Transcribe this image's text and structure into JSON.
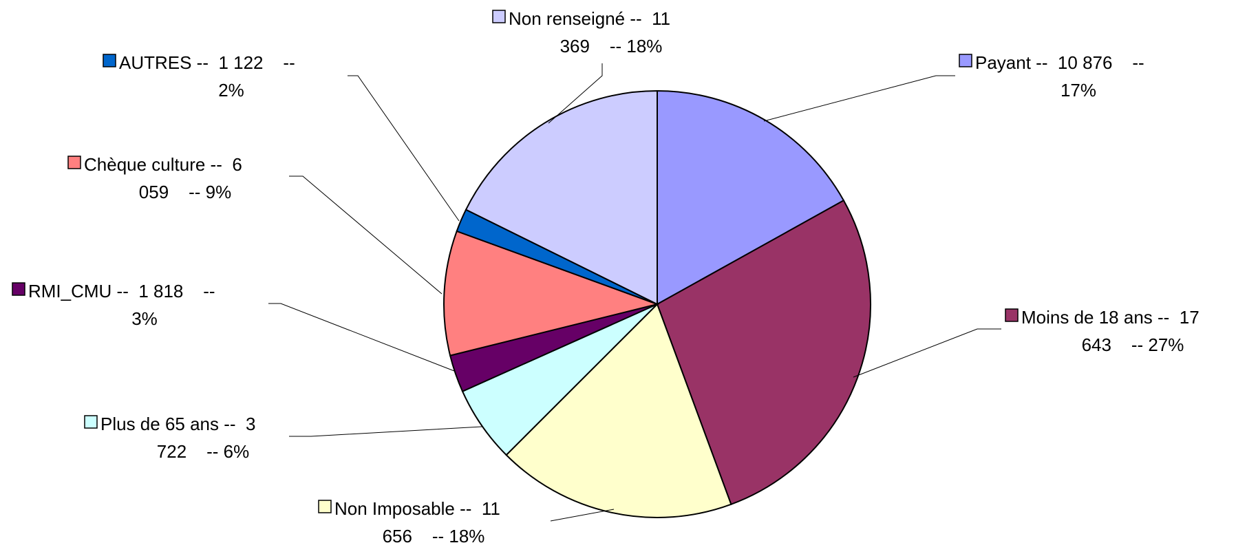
{
  "chart_data": {
    "type": "pie",
    "title": "",
    "start_angle_deg": 0,
    "direction": "clockwise",
    "legend": "none",
    "slices": [
      {
        "name": "Payant",
        "value": "10 876",
        "percent": "17%",
        "fraction": 0.1685,
        "color": "#9999FF",
        "label_line1": "Payant --  10 876    --",
        "label_line2": "17%"
      },
      {
        "name": "Moins de 18 ans",
        "value": "17 643",
        "percent": "27%",
        "fraction": 0.2734,
        "color": "#993366",
        "label_line1": "Moins de 18 ans --  17",
        "label_line2": "643    -- 27%"
      },
      {
        "name": "Non Imposable",
        "value": "11 656",
        "percent": "18%",
        "fraction": 0.1806,
        "color": "#FFFFCC",
        "label_line1": "Non Imposable --  11",
        "label_line2": "656    -- 18%"
      },
      {
        "name": "Plus de 65 ans",
        "value": "3 722",
        "percent": "6%",
        "fraction": 0.0577,
        "color": "#CCFFFF",
        "label_line1": "Plus de 65 ans --  3",
        "label_line2": "722    -- 6%"
      },
      {
        "name": "RMI_CMU",
        "value": "1 818",
        "percent": "3%",
        "fraction": 0.0282,
        "color": "#660066",
        "label_line1": "RMI_CMU --  1 818    --",
        "label_line2": "3%"
      },
      {
        "name": "Chèque culture",
        "value": "6 059",
        "percent": "9%",
        "fraction": 0.0939,
        "color": "#FF8080",
        "label_line1": "Chèque culture --  6",
        "label_line2": "059    -- 9%"
      },
      {
        "name": "AUTRES",
        "value": "1 122",
        "percent": "2%",
        "fraction": 0.0174,
        "color": "#0066CC",
        "label_line1": "AUTRES --  1 122    --",
        "label_line2": "2%"
      },
      {
        "name": "Non renseigné",
        "value": "11 369",
        "percent": "18%",
        "fraction": 0.1762,
        "color": "#CCCCFF",
        "label_line1": "Non renseigné --  11",
        "label_line2": "369    -- 18%"
      }
    ]
  }
}
